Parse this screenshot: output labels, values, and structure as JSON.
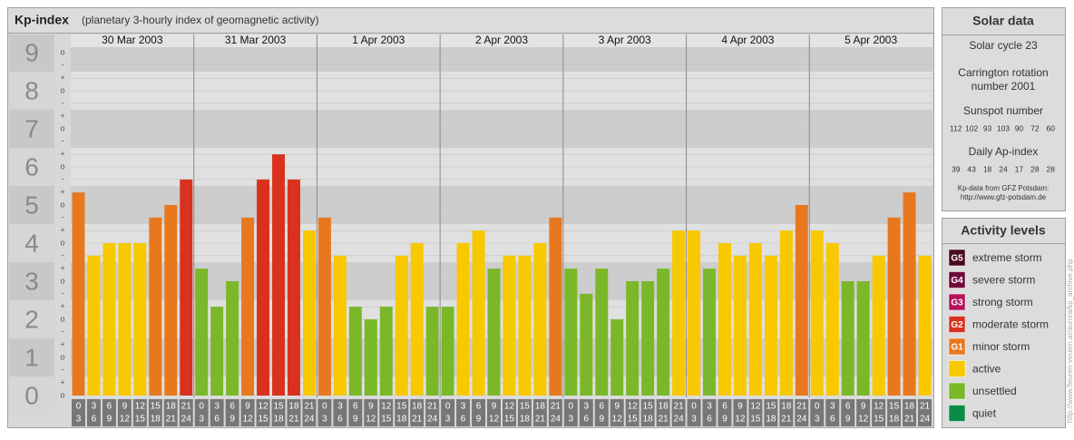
{
  "chart_data": {
    "type": "bar",
    "title": "Kp-index",
    "subtitle": "(planetary 3-hourly index of geomagnetic activity)",
    "days": [
      "30 Mar 2003",
      "31 Mar 2003",
      "1 Apr 2003",
      "2 Apr 2003",
      "3 Apr 2003",
      "4 Apr 2003",
      "5 Apr 2003"
    ],
    "hours_start": [
      0,
      3,
      6,
      9,
      12,
      15,
      18,
      21
    ],
    "hours_end": [
      3,
      6,
      9,
      12,
      15,
      18,
      21,
      24
    ],
    "values": [
      5.33,
      3.67,
      4,
      4,
      4,
      4.67,
      5,
      5.67,
      3.33,
      2.33,
      3,
      4.67,
      5.67,
      6.33,
      5.67,
      4.33,
      4.67,
      3.67,
      2.33,
      2,
      2.33,
      3.67,
      4,
      2.33,
      2.33,
      4,
      4.33,
      3.33,
      3.67,
      3.67,
      4,
      4.67,
      3.33,
      2.67,
      3.33,
      2,
      3,
      3,
      3.33,
      4.33,
      4.33,
      3.33,
      4,
      3.67,
      4,
      3.67,
      4.33,
      5,
      4.33,
      4,
      3,
      3,
      3.67,
      4.67,
      5.33,
      3.67
    ],
    "colors": [
      "#e8781e",
      "#f8c800",
      "#f8c800",
      "#f8c800",
      "#f8c800",
      "#e8781e",
      "#e8781e",
      "#d8321e",
      "#7ab82a",
      "#7ab82a",
      "#7ab82a",
      "#e8781e",
      "#d8321e",
      "#d8321e",
      "#d8321e",
      "#f8c800",
      "#e8781e",
      "#f8c800",
      "#7ab82a",
      "#7ab82a",
      "#7ab82a",
      "#f8c800",
      "#f8c800",
      "#7ab82a",
      "#7ab82a",
      "#f8c800",
      "#f8c800",
      "#7ab82a",
      "#f8c800",
      "#f8c800",
      "#f8c800",
      "#e8781e",
      "#7ab82a",
      "#7ab82a",
      "#7ab82a",
      "#7ab82a",
      "#7ab82a",
      "#7ab82a",
      "#7ab82a",
      "#f8c800",
      "#f8c800",
      "#7ab82a",
      "#f8c800",
      "#f8c800",
      "#f8c800",
      "#f8c800",
      "#f8c800",
      "#e8781e",
      "#f8c800",
      "#f8c800",
      "#7ab82a",
      "#7ab82a",
      "#f8c800",
      "#e8781e",
      "#e8781e",
      "#f8c800"
    ],
    "ylim": [
      0,
      9
    ],
    "yticks": [
      0,
      1,
      2,
      3,
      4,
      5,
      6,
      7,
      8,
      9
    ],
    "minor_ticks": [
      {
        "value": 0,
        "label": "o"
      },
      {
        "value": 0.33,
        "label": "+"
      },
      {
        "value": 0.67,
        "label": "-"
      },
      {
        "value": 1,
        "label": "o"
      },
      {
        "value": 1.33,
        "label": "+"
      },
      {
        "value": 1.67,
        "label": "-"
      },
      {
        "value": 2,
        "label": "o"
      },
      {
        "value": 2.33,
        "label": "+"
      },
      {
        "value": 2.67,
        "label": "-"
      },
      {
        "value": 3,
        "label": "o"
      },
      {
        "value": 3.33,
        "label": "+"
      },
      {
        "value": 3.67,
        "label": "-"
      },
      {
        "value": 4,
        "label": "o"
      },
      {
        "value": 4.33,
        "label": "+"
      },
      {
        "value": 4.67,
        "label": "-"
      },
      {
        "value": 5,
        "label": "o"
      },
      {
        "value": 5.33,
        "label": "+"
      },
      {
        "value": 5.67,
        "label": "-"
      },
      {
        "value": 6,
        "label": "o"
      },
      {
        "value": 6.33,
        "label": "+"
      },
      {
        "value": 6.67,
        "label": "-"
      },
      {
        "value": 7,
        "label": "o"
      },
      {
        "value": 7.33,
        "label": "+"
      },
      {
        "value": 7.67,
        "label": "-"
      },
      {
        "value": 8,
        "label": "o"
      },
      {
        "value": 8.33,
        "label": "+"
      },
      {
        "value": 8.67,
        "label": "-"
      },
      {
        "value": 9,
        "label": "o"
      }
    ]
  },
  "solar_data": {
    "title": "Solar data",
    "cycle": "Solar cycle 23",
    "carrington": [
      "Carrington rotation",
      "number 2001"
    ],
    "sunspot_title": "Sunspot number",
    "sunspot": [
      112,
      102,
      93,
      103,
      90,
      72,
      60
    ],
    "ap_title": "Daily Ap-index",
    "ap": [
      39,
      43,
      18,
      24,
      17,
      28,
      28
    ],
    "source": [
      "Kp-data from GFZ Potsdam:",
      "http://www.gfz-potsdam.de"
    ]
  },
  "activity_levels": {
    "title": "Activity levels",
    "items": [
      {
        "badge": "G5",
        "label": "extreme storm",
        "color": "#4a0a1e"
      },
      {
        "badge": "G4",
        "label": "severe storm",
        "color": "#6e0a3a"
      },
      {
        "badge": "G3",
        "label": "strong storm",
        "color": "#b4125a"
      },
      {
        "badge": "G2",
        "label": "moderate storm",
        "color": "#d8321e"
      },
      {
        "badge": "G1",
        "label": "minor storm",
        "color": "#e8781e"
      },
      {
        "label": "active",
        "color": "#f8c800"
      },
      {
        "label": "unsettled",
        "color": "#7ab82a"
      },
      {
        "label": "quiet",
        "color": "#0a8c46"
      }
    ]
  },
  "credit": "http://www.fleuren-veulen.at/aurora/kp_archive.php"
}
